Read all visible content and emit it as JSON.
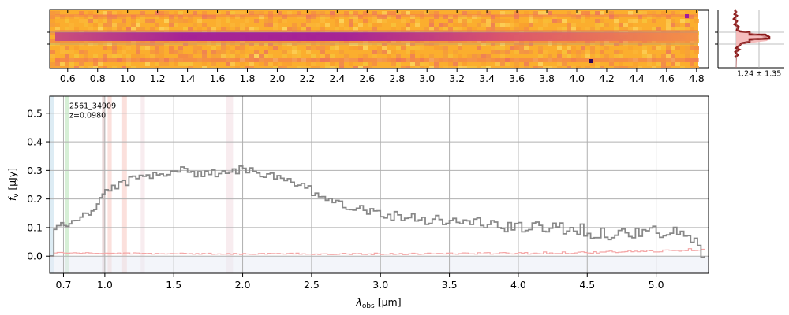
{
  "chart_data": [
    {
      "type": "heatmap",
      "xlim": [
        0.48,
        4.88
      ],
      "top_tick_labels": [
        {
          "x": 0.6,
          "label": "0.6"
        },
        {
          "x": 0.8,
          "label": "0.8"
        },
        {
          "x": 1.0,
          "label": "1.0"
        },
        {
          "x": 1.2,
          "label": "1.2"
        },
        {
          "x": 1.4,
          "label": "1.4"
        },
        {
          "x": 1.6,
          "label": "1.6"
        },
        {
          "x": 1.8,
          "label": "1.8"
        },
        {
          "x": 2.0,
          "label": "2.0"
        },
        {
          "x": 2.2,
          "label": "2.2"
        },
        {
          "x": 2.4,
          "label": "2.4"
        },
        {
          "x": 2.6,
          "label": "2.6"
        },
        {
          "x": 2.8,
          "label": "2.8"
        },
        {
          "x": 3.0,
          "label": "3.0"
        },
        {
          "x": 3.2,
          "label": "3.2"
        },
        {
          "x": 3.4,
          "label": "3.4"
        },
        {
          "x": 3.6,
          "label": "3.6"
        },
        {
          "x": 3.8,
          "label": "3.8"
        },
        {
          "x": 4.0,
          "label": "4.0"
        },
        {
          "x": 4.2,
          "label": "4.2"
        },
        {
          "x": 4.4,
          "label": "4.4"
        },
        {
          "x": 4.6,
          "label": "4.6"
        },
        {
          "x": 4.8,
          "label": "4.8"
        }
      ],
      "trace_profile": {
        "peak_row": 0.47,
        "peak_x": 1.9,
        "colormap": "plasma"
      }
    },
    {
      "type": "line",
      "profile_label": "1.24 ± 1.35",
      "profile_color": "#8b1a1a",
      "profile_fill": "#f4b6b6"
    },
    {
      "type": "line",
      "title": "",
      "annotation_id": "2561_34909",
      "annotation_z": "z=0.0980",
      "xlabel": "λ_obs [μm]",
      "xlabel_main": "λ",
      "xlabel_sub": "obs",
      "xlabel_unit": " [μm]",
      "ylabel": "f_ν [μJy]",
      "ylabel_main": "f",
      "ylabel_sub": "ν",
      "ylabel_unit": " [μJy]",
      "xlim": [
        0.6,
        5.38
      ],
      "ylim": [
        -0.06,
        0.56
      ],
      "grid": true,
      "xticks": [
        {
          "x": 0.7,
          "label": "0.7"
        },
        {
          "x": 1.0,
          "label": "1.0"
        },
        {
          "x": 1.5,
          "label": "1.5"
        },
        {
          "x": 2.0,
          "label": "2.0"
        },
        {
          "x": 2.5,
          "label": "2.5"
        },
        {
          "x": 3.0,
          "label": "3.0"
        },
        {
          "x": 3.5,
          "label": "3.5"
        },
        {
          "x": 4.0,
          "label": "4.0"
        },
        {
          "x": 4.5,
          "label": "4.5"
        },
        {
          "x": 5.0,
          "label": "5.0"
        }
      ],
      "yticks": [
        {
          "y": 0.0,
          "label": "0.0"
        },
        {
          "y": 0.1,
          "label": "0.1"
        },
        {
          "y": 0.2,
          "label": "0.2"
        },
        {
          "y": 0.3,
          "label": "0.3"
        },
        {
          "y": 0.4,
          "label": "0.4"
        },
        {
          "y": 0.5,
          "label": "0.5"
        }
      ],
      "line_bands": [
        {
          "x0": 0.71,
          "x1": 0.74,
          "color": "#d6efd6"
        },
        {
          "x0": 0.98,
          "x1": 1.0,
          "color": "#e8d6d6"
        },
        {
          "x0": 1.02,
          "x1": 1.05,
          "color": "#fbe0dc"
        },
        {
          "x0": 1.12,
          "x1": 1.16,
          "color": "#fbe0dc"
        },
        {
          "x0": 1.26,
          "x1": 1.29,
          "color": "#f8ecef"
        },
        {
          "x0": 1.88,
          "x1": 1.93,
          "color": "#f8ecef"
        }
      ],
      "series": [
        {
          "color": "#888888",
          "x": [
            0.6,
            0.63,
            0.65,
            0.68,
            0.72,
            0.76,
            0.8,
            0.84,
            0.88,
            0.92,
            0.96,
            1.0,
            1.05,
            1.1,
            1.15,
            1.2,
            1.25,
            1.3,
            1.35,
            1.4,
            1.45,
            1.5,
            1.55,
            1.6,
            1.65,
            1.7,
            1.75,
            1.8,
            1.85,
            1.9,
            1.95,
            2.0,
            2.05,
            2.1,
            2.15,
            2.2,
            2.25,
            2.3,
            2.35,
            2.4,
            2.45,
            2.5,
            2.6,
            2.7,
            2.8,
            2.9,
            3.0,
            3.1,
            3.2,
            3.3,
            3.4,
            3.5,
            3.6,
            3.7,
            3.8,
            3.9,
            4.0,
            4.1,
            4.2,
            4.3,
            4.4,
            4.5,
            4.6,
            4.7,
            4.8,
            4.9,
            5.0,
            5.1,
            5.2,
            5.3,
            5.35
          ],
          "y": [
            0.0,
            0.1,
            0.1,
            0.11,
            0.11,
            0.12,
            0.13,
            0.14,
            0.15,
            0.17,
            0.2,
            0.23,
            0.24,
            0.25,
            0.26,
            0.27,
            0.28,
            0.28,
            0.29,
            0.29,
            0.29,
            0.3,
            0.3,
            0.3,
            0.29,
            0.29,
            0.29,
            0.29,
            0.3,
            0.3,
            0.3,
            0.31,
            0.3,
            0.3,
            0.28,
            0.28,
            0.27,
            0.26,
            0.26,
            0.24,
            0.24,
            0.22,
            0.21,
            0.19,
            0.17,
            0.16,
            0.15,
            0.14,
            0.14,
            0.13,
            0.13,
            0.12,
            0.12,
            0.12,
            0.11,
            0.1,
            0.1,
            0.1,
            0.1,
            0.1,
            0.1,
            0.08,
            0.08,
            0.08,
            0.08,
            0.09,
            0.08,
            0.08,
            0.08,
            0.03,
            0.0
          ]
        },
        {
          "color": "#f4a6a6",
          "x": [
            0.6,
            0.63,
            1.0,
            2.0,
            3.0,
            4.0,
            4.5,
            5.0,
            5.35
          ],
          "y": [
            0.0,
            0.012,
            0.01,
            0.008,
            0.008,
            0.01,
            0.013,
            0.018,
            0.025
          ]
        }
      ]
    }
  ]
}
